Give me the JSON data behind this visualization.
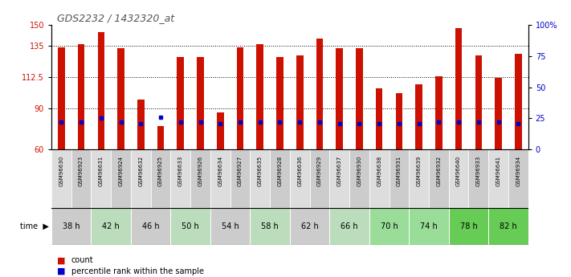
{
  "title": "GDS2232 / 1432320_at",
  "samples": [
    "GSM96630",
    "GSM96923",
    "GSM96631",
    "GSM96924",
    "GSM96632",
    "GSM96925",
    "GSM96633",
    "GSM96926",
    "GSM96634",
    "GSM96927",
    "GSM96635",
    "GSM96928",
    "GSM96636",
    "GSM96929",
    "GSM96637",
    "GSM96930",
    "GSM96638",
    "GSM96931",
    "GSM96639",
    "GSM96932",
    "GSM96640",
    "GSM96933",
    "GSM96641",
    "GSM96934"
  ],
  "counts": [
    134,
    136,
    145,
    133,
    96,
    77,
    127,
    127,
    87,
    134,
    136,
    127,
    128,
    140,
    133,
    133,
    104,
    101,
    107,
    113,
    148,
    128,
    112,
    129
  ],
  "percentile_vals": [
    22,
    22,
    25,
    22,
    21,
    26,
    22,
    22,
    21,
    22,
    22,
    22,
    22,
    22,
    21,
    21,
    21,
    21,
    21,
    22,
    22,
    22,
    22,
    21
  ],
  "time_groups": [
    {
      "label": "38 h",
      "indices": [
        0,
        1
      ],
      "color": "#cccccc"
    },
    {
      "label": "42 h",
      "indices": [
        2,
        3
      ],
      "color": "#bbddbb"
    },
    {
      "label": "46 h",
      "indices": [
        4,
        5
      ],
      "color": "#cccccc"
    },
    {
      "label": "50 h",
      "indices": [
        6,
        7
      ],
      "color": "#bbddbb"
    },
    {
      "label": "54 h",
      "indices": [
        8,
        9
      ],
      "color": "#cccccc"
    },
    {
      "label": "58 h",
      "indices": [
        10,
        11
      ],
      "color": "#bbddbb"
    },
    {
      "label": "62 h",
      "indices": [
        12,
        13
      ],
      "color": "#cccccc"
    },
    {
      "label": "66 h",
      "indices": [
        14,
        15
      ],
      "color": "#bbddbb"
    },
    {
      "label": "70 h",
      "indices": [
        16,
        17
      ],
      "color": "#99dd99"
    },
    {
      "label": "74 h",
      "indices": [
        18,
        19
      ],
      "color": "#99dd99"
    },
    {
      "label": "78 h",
      "indices": [
        20,
        21
      ],
      "color": "#66cc55"
    },
    {
      "label": "82 h",
      "indices": [
        22,
        23
      ],
      "color": "#66cc55"
    }
  ],
  "ymin": 60,
  "ymax": 150,
  "yticks_left": [
    60,
    90,
    112.5,
    135,
    150
  ],
  "yticks_left_labels": [
    "60",
    "90",
    "112.5",
    "135",
    "150"
  ],
  "yticks_right": [
    0,
    25,
    50,
    75,
    100
  ],
  "yticks_right_labels": [
    "0",
    "25",
    "50",
    "75",
    "100%"
  ],
  "bar_color": "#cc1100",
  "percentile_color": "#0000cc",
  "left_tick_color": "#cc1100",
  "right_tick_color": "#0000cc",
  "title_color": "#555555",
  "sample_bg_even": "#dddddd",
  "sample_bg_odd": "#cccccc"
}
